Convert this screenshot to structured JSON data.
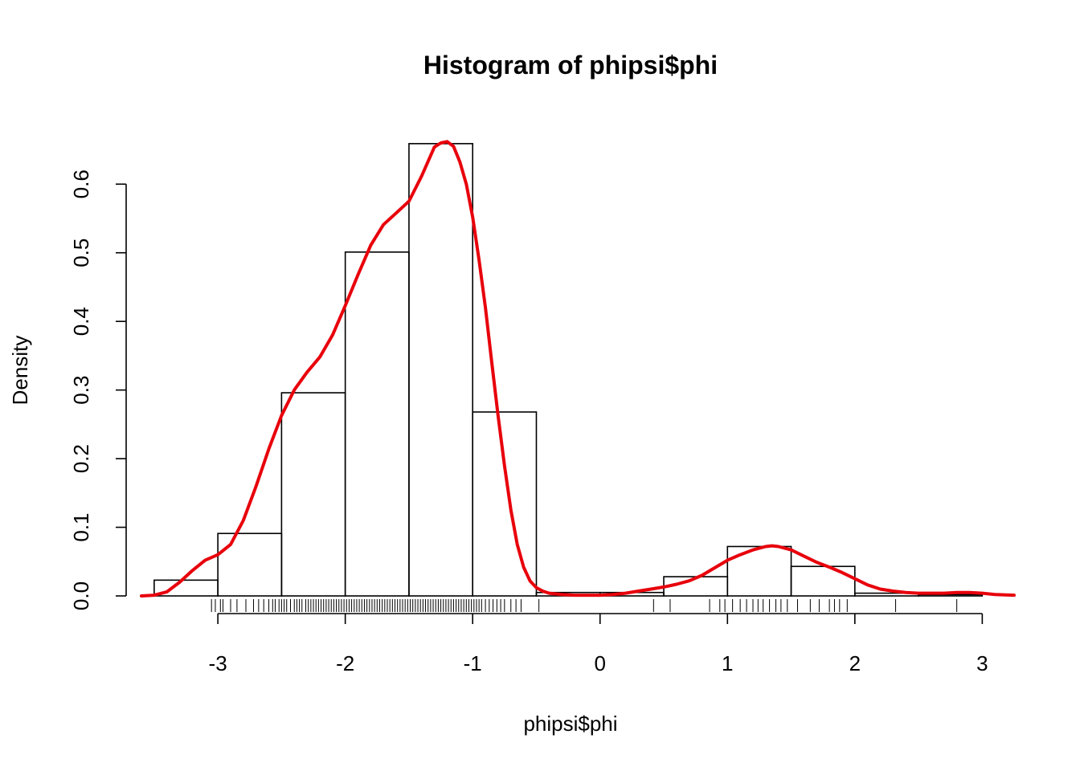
{
  "chart_data": {
    "type": "bar",
    "title": "Histogram of phipsi$phi",
    "xlabel": "phipsi$phi",
    "ylabel": "Density",
    "xlim": [
      -3.6,
      3.25
    ],
    "ylim": [
      0,
      0.66
    ],
    "x_ticks": [
      -3,
      -2,
      -1,
      0,
      1,
      2,
      3
    ],
    "x_tick_labels": [
      "-3",
      "-2",
      "-1",
      "0",
      "1",
      "2",
      "3"
    ],
    "y_ticks": [
      0.0,
      0.1,
      0.2,
      0.3,
      0.4,
      0.5,
      0.6
    ],
    "y_tick_labels": [
      "0.0",
      "0.1",
      "0.2",
      "0.3",
      "0.4",
      "0.5",
      "0.6"
    ],
    "bins": [
      {
        "x0": -3.5,
        "x1": -3.0,
        "density": 0.023
      },
      {
        "x0": -3.0,
        "x1": -2.5,
        "density": 0.091
      },
      {
        "x0": -2.5,
        "x1": -2.0,
        "density": 0.296
      },
      {
        "x0": -2.0,
        "x1": -1.5,
        "density": 0.501
      },
      {
        "x0": -1.5,
        "x1": -1.0,
        "density": 0.659
      },
      {
        "x0": -1.0,
        "x1": -0.5,
        "density": 0.268
      },
      {
        "x0": -0.5,
        "x1": 0.0,
        "density": 0.005
      },
      {
        "x0": 0.0,
        "x1": 0.5,
        "density": 0.005
      },
      {
        "x0": 0.5,
        "x1": 1.0,
        "density": 0.028
      },
      {
        "x0": 1.0,
        "x1": 1.5,
        "density": 0.072
      },
      {
        "x0": 1.5,
        "x1": 2.0,
        "density": 0.043
      },
      {
        "x0": 2.0,
        "x1": 2.5,
        "density": 0.004
      },
      {
        "x0": 2.5,
        "x1": 3.0,
        "density": 0.002
      }
    ],
    "density_curve": {
      "color": "#e8000b",
      "x": [
        -3.6,
        -3.5,
        -3.4,
        -3.3,
        -3.2,
        -3.1,
        -3.0,
        -2.9,
        -2.8,
        -2.7,
        -2.6,
        -2.5,
        -2.4,
        -2.3,
        -2.2,
        -2.1,
        -2.0,
        -1.9,
        -1.8,
        -1.7,
        -1.6,
        -1.5,
        -1.4,
        -1.3,
        -1.25,
        -1.2,
        -1.15,
        -1.1,
        -1.05,
        -1.0,
        -0.95,
        -0.9,
        -0.85,
        -0.8,
        -0.75,
        -0.7,
        -0.65,
        -0.6,
        -0.55,
        -0.5,
        -0.45,
        -0.4,
        -0.3,
        -0.2,
        -0.1,
        0.0,
        0.1,
        0.2,
        0.3,
        0.4,
        0.5,
        0.6,
        0.7,
        0.8,
        0.9,
        1.0,
        1.1,
        1.2,
        1.3,
        1.35,
        1.4,
        1.5,
        1.6,
        1.7,
        1.8,
        1.9,
        2.0,
        2.1,
        2.2,
        2.3,
        2.4,
        2.5,
        2.6,
        2.7,
        2.8,
        2.9,
        3.0,
        3.1,
        3.25
      ],
      "y": [
        0.0,
        0.001,
        0.006,
        0.02,
        0.037,
        0.052,
        0.06,
        0.075,
        0.11,
        0.16,
        0.214,
        0.263,
        0.3,
        0.326,
        0.348,
        0.38,
        0.423,
        0.468,
        0.511,
        0.541,
        0.558,
        0.575,
        0.612,
        0.654,
        0.66,
        0.662,
        0.655,
        0.632,
        0.6,
        0.552,
        0.49,
        0.42,
        0.34,
        0.262,
        0.19,
        0.125,
        0.075,
        0.042,
        0.022,
        0.012,
        0.007,
        0.004,
        0.002,
        0.001,
        0.001,
        0.001,
        0.002,
        0.004,
        0.007,
        0.01,
        0.013,
        0.017,
        0.022,
        0.03,
        0.041,
        0.052,
        0.06,
        0.067,
        0.072,
        0.073,
        0.072,
        0.067,
        0.058,
        0.049,
        0.042,
        0.034,
        0.025,
        0.016,
        0.01,
        0.007,
        0.005,
        0.004,
        0.004,
        0.004,
        0.005,
        0.005,
        0.004,
        0.002,
        0.001
      ]
    },
    "rug": [
      -3.05,
      -3.02,
      -2.98,
      -2.96,
      -2.9,
      -2.85,
      -2.78,
      -2.72,
      -2.68,
      -2.64,
      -2.6,
      -2.57,
      -2.55,
      -2.52,
      -2.5,
      -2.48,
      -2.46,
      -2.43,
      -2.4,
      -2.38,
      -2.36,
      -2.34,
      -2.31,
      -2.29,
      -2.27,
      -2.25,
      -2.23,
      -2.21,
      -2.19,
      -2.17,
      -2.15,
      -2.13,
      -2.11,
      -2.09,
      -2.07,
      -2.05,
      -2.03,
      -2.01,
      -1.99,
      -1.97,
      -1.95,
      -1.93,
      -1.91,
      -1.89,
      -1.87,
      -1.85,
      -1.83,
      -1.81,
      -1.79,
      -1.77,
      -1.75,
      -1.73,
      -1.71,
      -1.69,
      -1.67,
      -1.65,
      -1.63,
      -1.61,
      -1.59,
      -1.57,
      -1.55,
      -1.53,
      -1.51,
      -1.49,
      -1.47,
      -1.45,
      -1.43,
      -1.41,
      -1.39,
      -1.37,
      -1.35,
      -1.33,
      -1.31,
      -1.29,
      -1.27,
      -1.25,
      -1.23,
      -1.21,
      -1.19,
      -1.17,
      -1.15,
      -1.13,
      -1.11,
      -1.09,
      -1.07,
      -1.05,
      -1.03,
      -1.01,
      -0.99,
      -0.97,
      -0.95,
      -0.93,
      -0.9,
      -0.87,
      -0.84,
      -0.81,
      -0.78,
      -0.75,
      -0.7,
      -0.66,
      -0.62,
      -0.48,
      0.42,
      0.55,
      0.86,
      0.94,
      0.98,
      1.04,
      1.1,
      1.15,
      1.2,
      1.24,
      1.28,
      1.33,
      1.38,
      1.42,
      1.47,
      1.55,
      1.65,
      1.72,
      1.8,
      1.84,
      1.88,
      1.94,
      2.32,
      2.8
    ]
  }
}
